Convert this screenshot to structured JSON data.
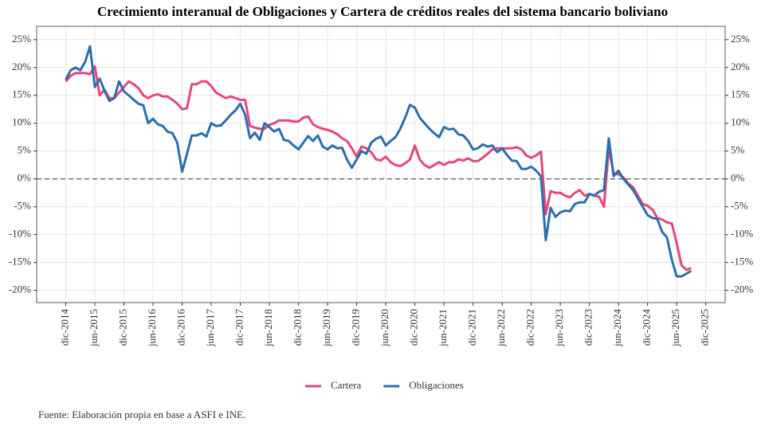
{
  "chart_data": {
    "type": "line",
    "title": "Crecimiento interanual de Obligaciones y Cartera de créditos reales del sistema bancario boliviano",
    "caption": "Fuente: Elaboración propia en base a ASFI e INE.",
    "x": [
      "2014-12",
      "2015-01",
      "2015-02",
      "2015-03",
      "2015-04",
      "2015-05",
      "2015-06",
      "2015-07",
      "2015-08",
      "2015-09",
      "2015-10",
      "2015-11",
      "2015-12",
      "2016-01",
      "2016-02",
      "2016-03",
      "2016-04",
      "2016-05",
      "2016-06",
      "2016-07",
      "2016-08",
      "2016-09",
      "2016-10",
      "2016-11",
      "2016-12",
      "2017-01",
      "2017-02",
      "2017-03",
      "2017-04",
      "2017-05",
      "2017-06",
      "2017-07",
      "2017-08",
      "2017-09",
      "2017-10",
      "2017-11",
      "2017-12",
      "2018-01",
      "2018-02",
      "2018-03",
      "2018-04",
      "2018-05",
      "2018-06",
      "2018-07",
      "2018-08",
      "2018-09",
      "2018-10",
      "2018-11",
      "2018-12",
      "2019-01",
      "2019-02",
      "2019-03",
      "2019-04",
      "2019-05",
      "2019-06",
      "2019-07",
      "2019-08",
      "2019-09",
      "2019-10",
      "2019-11",
      "2019-12",
      "2020-01",
      "2020-02",
      "2020-03",
      "2020-04",
      "2020-05",
      "2020-06",
      "2020-07",
      "2020-08",
      "2020-09",
      "2020-10",
      "2020-11",
      "2020-12",
      "2021-01",
      "2021-02",
      "2021-03",
      "2021-04",
      "2021-05",
      "2021-06",
      "2021-07",
      "2021-08",
      "2021-09",
      "2021-10",
      "2021-11",
      "2021-12",
      "2022-01",
      "2022-02",
      "2022-03",
      "2022-04",
      "2022-05",
      "2022-06",
      "2022-07",
      "2022-08",
      "2022-09",
      "2022-10",
      "2022-11",
      "2022-12",
      "2023-01",
      "2023-02",
      "2023-03",
      "2023-04",
      "2023-05",
      "2023-06",
      "2023-07",
      "2023-08",
      "2023-09",
      "2023-10",
      "2023-11",
      "2023-12",
      "2024-01",
      "2024-02",
      "2024-03",
      "2024-04",
      "2024-05",
      "2024-06",
      "2024-07",
      "2024-08",
      "2024-09",
      "2024-10",
      "2024-11",
      "2024-12",
      "2025-01",
      "2025-02",
      "2025-03",
      "2025-04",
      "2025-05",
      "2025-06",
      "2025-07",
      "2025-08",
      "2025-09"
    ],
    "series": [
      {
        "name": "Cartera",
        "color": "#e8457a",
        "values": [
          17.5,
          18.5,
          19,
          19,
          19,
          18.8,
          20.2,
          15,
          16,
          14.5,
          14.5,
          15.5,
          16.5,
          17.5,
          17,
          16.3,
          15,
          14.5,
          15,
          15.2,
          14.8,
          14.8,
          14.2,
          13.5,
          12.5,
          12.7,
          17,
          17,
          17.5,
          17.5,
          16.7,
          15.5,
          15,
          14.5,
          14.8,
          14.5,
          14.2,
          14.2,
          9.5,
          9.2,
          9,
          9,
          9.7,
          10,
          10.5,
          10.5,
          10.5,
          10.3,
          10.3,
          11,
          11.2,
          9.8,
          9.3,
          9,
          8.8,
          8.5,
          8,
          7.3,
          6.8,
          5.5,
          4,
          5.8,
          5.5,
          4.8,
          3.5,
          3.3,
          4,
          3,
          2.5,
          2.3,
          2.8,
          3.5,
          6,
          3.5,
          2.5,
          2,
          2.5,
          3,
          2.5,
          3,
          3,
          3.5,
          3.3,
          3.7,
          3.2,
          3.2,
          3.8,
          4.5,
          5.3,
          5.5,
          5.5,
          5.5,
          5.5,
          5.7,
          5.3,
          4.2,
          3.8,
          4.2,
          4.9,
          -6.3,
          -2.2,
          -2.5,
          -2.5,
          -3,
          -3.3,
          -2.5,
          -2,
          -3,
          -2.7,
          -3,
          -3.2,
          -5,
          5.5,
          1,
          0.8,
          0.3,
          -0.8,
          -1.5,
          -3,
          -4.5,
          -4.8,
          -5.5,
          -7,
          -7.3,
          -7.8,
          -8,
          -11.5,
          -15.5,
          -16.3,
          -16
        ]
      },
      {
        "name": "Obligaciones",
        "color": "#2a6fad",
        "values": [
          17.8,
          19.5,
          20,
          19.5,
          21,
          23.8,
          16.5,
          18,
          15.8,
          14,
          14.5,
          17.5,
          15.7,
          15,
          14.2,
          13.5,
          13.2,
          10,
          10.8,
          9.8,
          9.5,
          8.5,
          8.2,
          6.5,
          1.3,
          4.5,
          7.8,
          7.8,
          8.2,
          7.6,
          10,
          9.5,
          9.6,
          10.5,
          11.5,
          12.3,
          13.5,
          11.5,
          7.3,
          8.3,
          7,
          10,
          9.3,
          8.5,
          9,
          7,
          6.8,
          6,
          5.3,
          6.5,
          7.7,
          6.8,
          7.8,
          5.8,
          5.3,
          6,
          5.5,
          5.6,
          3.5,
          2,
          3.5,
          5,
          4.5,
          6.5,
          7.2,
          7.6,
          6,
          6.8,
          7.5,
          9,
          11,
          13.3,
          12.8,
          11,
          10,
          9,
          8.2,
          7.5,
          9.3,
          8.9,
          9,
          8,
          7.8,
          6.8,
          5.3,
          5.5,
          6.2,
          5.8,
          6,
          4.8,
          5.5,
          4.3,
          3.3,
          3.2,
          1.8,
          1.8,
          2.2,
          1.5,
          0.5,
          -11,
          -5.2,
          -6.8,
          -6,
          -5.7,
          -5.8,
          -4.5,
          -4.2,
          -4.2,
          -2.7,
          -3,
          -2.3,
          -2,
          7.3,
          0.5,
          1.5,
          0,
          -1,
          -2,
          -3.5,
          -5,
          -6.5,
          -7,
          -7.2,
          -9.5,
          -10.5,
          -14.5,
          -17.5,
          -17.5,
          -17,
          -16.5
        ]
      }
    ],
    "xlim": [
      "2014-06",
      "2026-04"
    ],
    "xticks": [
      {
        "value": "2014-12",
        "label": "dic-2014"
      },
      {
        "value": "2015-06",
        "label": "jun-2015"
      },
      {
        "value": "2015-12",
        "label": "dic-2015"
      },
      {
        "value": "2016-06",
        "label": "jun-2016"
      },
      {
        "value": "2016-12",
        "label": "dic-2016"
      },
      {
        "value": "2017-06",
        "label": "jun-2017"
      },
      {
        "value": "2017-12",
        "label": "dic-2017"
      },
      {
        "value": "2018-06",
        "label": "jun-2018"
      },
      {
        "value": "2018-12",
        "label": "dic-2018"
      },
      {
        "value": "2019-06",
        "label": "jun-2019"
      },
      {
        "value": "2019-12",
        "label": "dic-2019"
      },
      {
        "value": "2020-06",
        "label": "jun-2020"
      },
      {
        "value": "2020-12",
        "label": "dic-2020"
      },
      {
        "value": "2021-06",
        "label": "jun-2021"
      },
      {
        "value": "2021-12",
        "label": "dic-2021"
      },
      {
        "value": "2022-06",
        "label": "jun-2022"
      },
      {
        "value": "2022-12",
        "label": "dic-2022"
      },
      {
        "value": "2023-06",
        "label": "jun-2023"
      },
      {
        "value": "2023-12",
        "label": "dic-2023"
      },
      {
        "value": "2024-06",
        "label": "jun-2024"
      },
      {
        "value": "2024-12",
        "label": "dic-2024"
      },
      {
        "value": "2025-06",
        "label": "jun-2025"
      },
      {
        "value": "2025-12",
        "label": "dic-2025"
      }
    ],
    "ylim": [
      -22.2,
      27.4
    ],
    "yticks": [
      {
        "value": -20,
        "label": "-20%"
      },
      {
        "value": -15,
        "label": "-15%"
      },
      {
        "value": -10,
        "label": "-10%"
      },
      {
        "value": -5,
        "label": "-5%"
      },
      {
        "value": 0,
        "label": "0%"
      },
      {
        "value": 5,
        "label": "5%"
      },
      {
        "value": 10,
        "label": "10%"
      },
      {
        "value": 15,
        "label": "15%"
      },
      {
        "value": 20,
        "label": "20%"
      },
      {
        "value": 25,
        "label": "25%"
      }
    ],
    "hline": 0,
    "grid": true,
    "legend": "bottom"
  }
}
